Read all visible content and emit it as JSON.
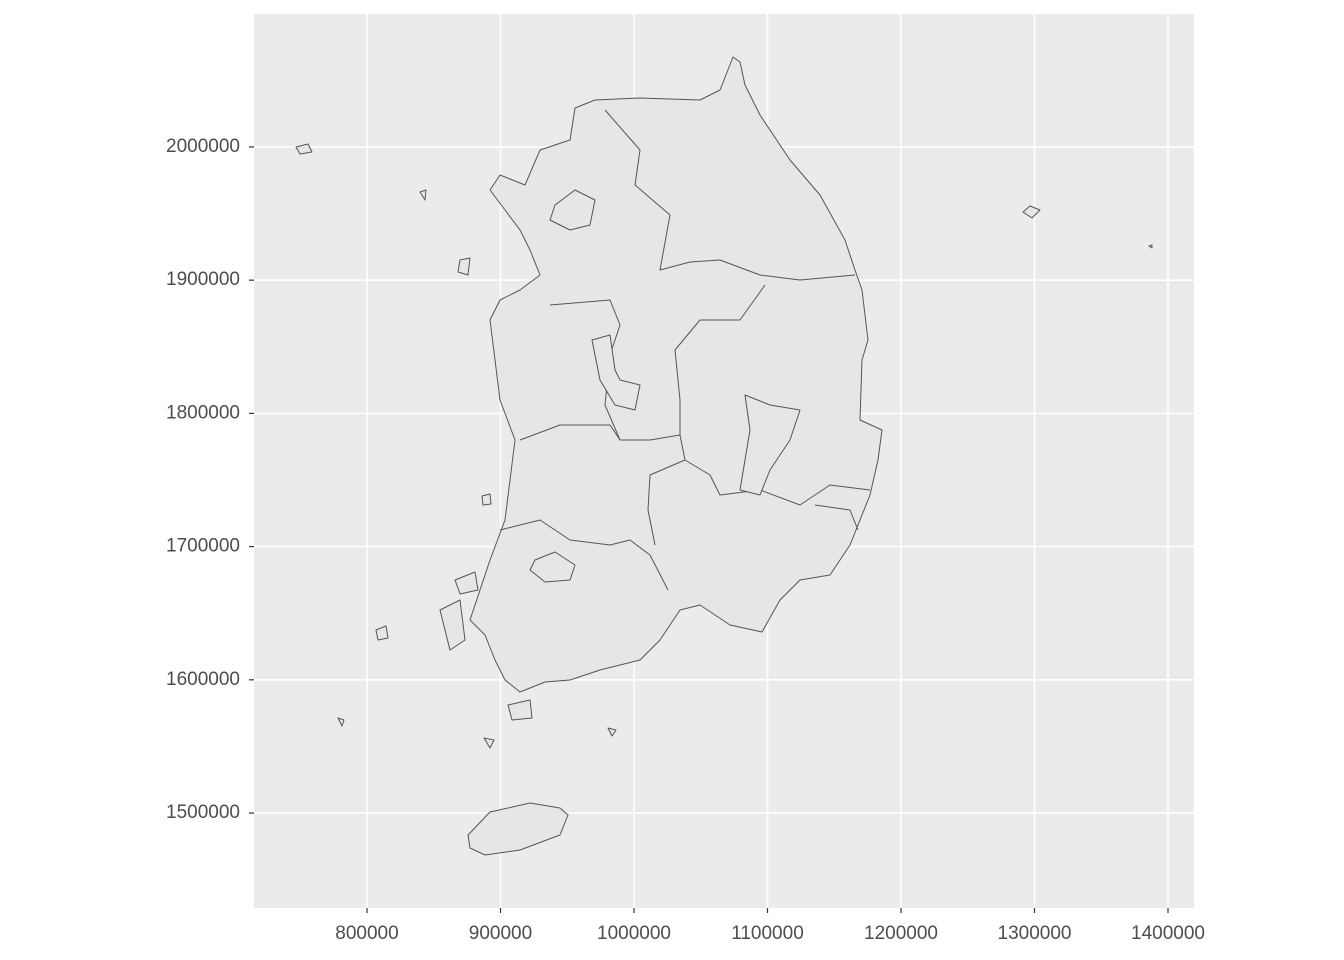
{
  "chart_data": {
    "type": "map",
    "xlim": [
      715360,
      1419476
    ],
    "ylim": [
      1428732,
      2099775
    ],
    "xticks": [
      800000,
      900000,
      1000000,
      1100000,
      1200000,
      1300000,
      1400000
    ],
    "yticks": [
      1500000,
      1600000,
      1700000,
      1800000,
      1900000,
      2000000
    ],
    "grid": true
  }
}
